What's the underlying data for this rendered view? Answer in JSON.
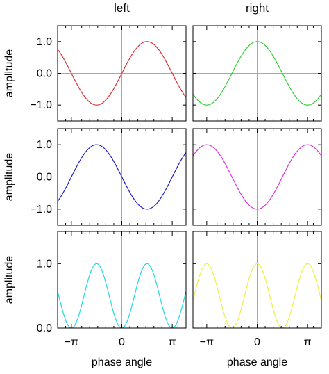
{
  "chart_data": {
    "type": "line",
    "x_tick_labels": [
      "−π",
      "0",
      "π"
    ],
    "x_ticks": [
      -3.14159,
      0,
      3.14159
    ],
    "xlim": [
      -4.0,
      4.0
    ],
    "xlabel": "phase angle",
    "ylabel": "amplitude",
    "columns": [
      "left",
      "right"
    ],
    "panels": [
      {
        "row": 0,
        "col": 0,
        "ylim": [
          -1.5,
          1.5
        ],
        "yticks": [
          1.0,
          0.0,
          -1.0
        ],
        "ytick_labels": [
          "1.0",
          "0.0",
          "−1.0"
        ],
        "series": [
          {
            "function": "sin(x)",
            "color": "#e03030",
            "x": [
              -4.0,
              -3.5,
              -3.0,
              -2.5,
              -2.0,
              -1.5708,
              -1.0,
              -0.5,
              0,
              0.5,
              1.0,
              1.5708,
              2.0,
              2.5,
              3.0,
              3.5,
              4.0
            ],
            "y": [
              0.757,
              0.351,
              -0.141,
              -0.598,
              -0.909,
              -1.0,
              -0.841,
              -0.479,
              0.0,
              0.479,
              0.841,
              1.0,
              0.909,
              0.598,
              0.141,
              -0.351,
              -0.757
            ]
          }
        ]
      },
      {
        "row": 0,
        "col": 1,
        "ylim": [
          -1.5,
          1.5
        ],
        "yticks": [
          1.0,
          0.0,
          -1.0
        ],
        "series": [
          {
            "function": "cos(x)",
            "color": "#30d030",
            "x": [
              -4.0,
              -3.5,
              -3.14159,
              -2.5,
              -2.0,
              -1.5,
              -1.0,
              -0.5,
              0,
              0.5,
              1.0,
              1.5,
              2.0,
              2.5,
              3.14159,
              3.5,
              4.0
            ],
            "y": [
              -0.654,
              -0.936,
              -1.0,
              -0.801,
              -0.416,
              0.071,
              0.54,
              0.878,
              1.0,
              0.878,
              0.54,
              0.071,
              -0.416,
              -0.801,
              -1.0,
              -0.936,
              -0.654
            ]
          }
        ]
      },
      {
        "row": 1,
        "col": 0,
        "ylim": [
          -1.5,
          1.5
        ],
        "yticks": [
          1.0,
          0.0,
          -1.0
        ],
        "ytick_labels": [
          "1.0",
          "0.0",
          "−1.0"
        ],
        "series": [
          {
            "function": "-sin(x)",
            "color": "#2020c0",
            "x": [
              -4.0,
              -3.5,
              -3.0,
              -2.5,
              -2.0,
              -1.5708,
              -1.0,
              -0.5,
              0,
              0.5,
              1.0,
              1.5708,
              2.0,
              2.5,
              3.0,
              3.5,
              4.0
            ],
            "y": [
              -0.757,
              -0.351,
              0.141,
              0.598,
              0.909,
              1.0,
              0.841,
              0.479,
              0.0,
              -0.479,
              -0.841,
              -1.0,
              -0.909,
              -0.598,
              -0.141,
              0.351,
              0.757
            ]
          }
        ]
      },
      {
        "row": 1,
        "col": 1,
        "ylim": [
          -1.5,
          1.5
        ],
        "yticks": [
          1.0,
          0.0,
          -1.0
        ],
        "series": [
          {
            "function": "-cos(x)",
            "color": "#e030e0",
            "x": [
              -4.0,
              -3.5,
              -3.14159,
              -2.5,
              -2.0,
              -1.5,
              -1.0,
              -0.5,
              0,
              0.5,
              1.0,
              1.5,
              2.0,
              2.5,
              3.14159,
              3.5,
              4.0
            ],
            "y": [
              0.654,
              0.936,
              1.0,
              0.801,
              0.416,
              -0.071,
              -0.54,
              -0.878,
              -1.0,
              -0.878,
              -0.54,
              -0.071,
              0.416,
              0.801,
              1.0,
              0.936,
              0.654
            ]
          }
        ]
      },
      {
        "row": 2,
        "col": 0,
        "ylim": [
          0.0,
          1.5
        ],
        "yticks": [
          1.0,
          0.0
        ],
        "ytick_labels": [
          "1.0",
          "0.0"
        ],
        "series": [
          {
            "function": "sin(x)^2",
            "color": "#20d8e0",
            "x": [
              -4.0,
              -3.5,
              -3.14159,
              -2.5,
              -2.0,
              -1.5708,
              -1.0,
              -0.5,
              0,
              0.5,
              1.0,
              1.5708,
              2.0,
              2.5,
              3.14159,
              3.5,
              4.0
            ],
            "y": [
              0.573,
              0.123,
              0.0,
              0.358,
              0.827,
              1.0,
              0.708,
              0.23,
              0.0,
              0.23,
              0.708,
              1.0,
              0.827,
              0.358,
              0.0,
              0.123,
              0.573
            ]
          }
        ]
      },
      {
        "row": 2,
        "col": 1,
        "ylim": [
          0.0,
          1.5
        ],
        "yticks": [
          1.0,
          0.0
        ],
        "series": [
          {
            "function": "cos(x)^2",
            "color": "#f0f040",
            "x": [
              -4.0,
              -3.5,
              -3.14159,
              -2.5,
              -2.0,
              -1.5708,
              -1.0,
              -0.5,
              0,
              0.5,
              1.0,
              1.5708,
              2.0,
              2.5,
              3.14159,
              3.5,
              4.0
            ],
            "y": [
              0.427,
              0.877,
              1.0,
              0.642,
              0.173,
              0.0,
              0.292,
              0.77,
              1.0,
              0.77,
              0.292,
              0.0,
              0.173,
              0.642,
              1.0,
              0.877,
              0.427
            ]
          }
        ]
      }
    ]
  }
}
